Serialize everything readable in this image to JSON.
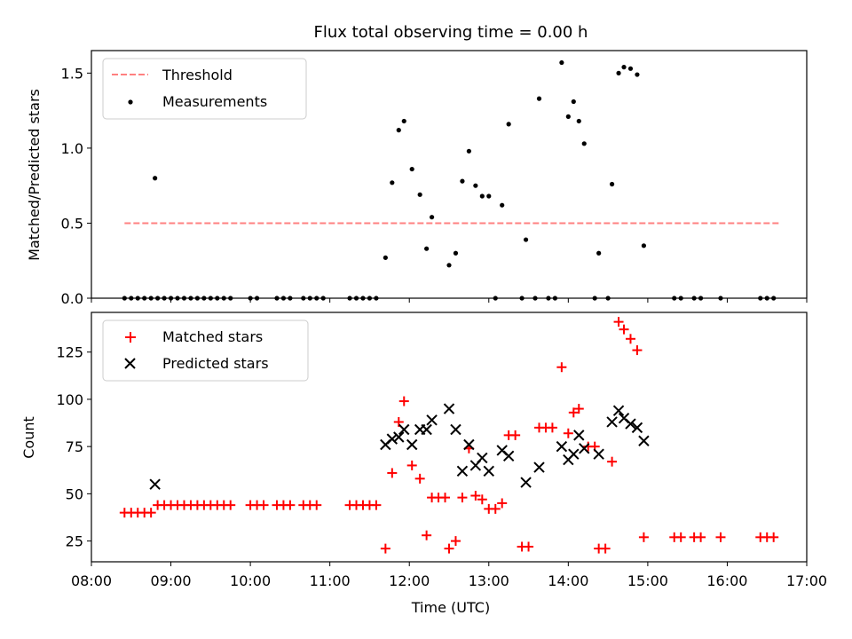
{
  "figure": {
    "title": "Flux total observing time = 0.00 h"
  },
  "colors": {
    "threshold": "#ff8080",
    "measurement": "#000000",
    "matched": "#ff0000",
    "predicted": "#000000"
  },
  "chart_data": [
    {
      "type": "scatter",
      "title": "Flux total observing time = 0.00 h",
      "xlabel": "",
      "ylabel": "Matched/Predicted stars",
      "xlim": [
        "08:00",
        "17:00"
      ],
      "ylim": [
        0,
        1.65
      ],
      "yticks": [
        0.0,
        0.5,
        1.0,
        1.5
      ],
      "ytick_labels": [
        "0.0",
        "0.5",
        "1.0",
        "1.5"
      ],
      "legend": {
        "placement": "top-left",
        "entries": [
          {
            "label": "Threshold",
            "kind": "dashed-line",
            "color": "#ff8080"
          },
          {
            "label": "Measurements",
            "kind": "dot",
            "color": "#000000"
          }
        ]
      },
      "threshold": {
        "name": "Threshold",
        "y": 0.5,
        "x_start": "08:25",
        "x_end": "16:40"
      },
      "series": [
        {
          "name": "Measurements",
          "points": [
            [
              "08:25",
              0
            ],
            [
              "08:30",
              0
            ],
            [
              "08:35",
              0
            ],
            [
              "08:40",
              0
            ],
            [
              "08:45",
              0
            ],
            [
              "08:48",
              0.8
            ],
            [
              "08:50",
              0
            ],
            [
              "08:55",
              0
            ],
            [
              "09:00",
              0
            ],
            [
              "09:05",
              0
            ],
            [
              "09:10",
              0
            ],
            [
              "09:15",
              0
            ],
            [
              "09:20",
              0
            ],
            [
              "09:25",
              0
            ],
            [
              "09:30",
              0
            ],
            [
              "09:35",
              0
            ],
            [
              "09:40",
              0
            ],
            [
              "09:45",
              0
            ],
            [
              "10:00",
              0
            ],
            [
              "10:05",
              0
            ],
            [
              "10:20",
              0
            ],
            [
              "10:25",
              0
            ],
            [
              "10:30",
              0
            ],
            [
              "10:40",
              0
            ],
            [
              "10:45",
              0
            ],
            [
              "10:50",
              0
            ],
            [
              "10:55",
              0
            ],
            [
              "11:15",
              0
            ],
            [
              "11:20",
              0
            ],
            [
              "11:25",
              0
            ],
            [
              "11:30",
              0
            ],
            [
              "11:35",
              0
            ],
            [
              "11:42",
              0.27
            ],
            [
              "11:47",
              0.77
            ],
            [
              "11:52",
              1.12
            ],
            [
              "11:56",
              1.18
            ],
            [
              "12:02",
              0.86
            ],
            [
              "12:08",
              0.69
            ],
            [
              "12:13",
              0.33
            ],
            [
              "12:17",
              0.54
            ],
            [
              "12:30",
              0.22
            ],
            [
              "12:35",
              0.3
            ],
            [
              "12:40",
              0.78
            ],
            [
              "12:45",
              0.98
            ],
            [
              "12:50",
              0.75
            ],
            [
              "12:55",
              0.68
            ],
            [
              "13:00",
              0.68
            ],
            [
              "13:05",
              0
            ],
            [
              "13:10",
              0.62
            ],
            [
              "13:15",
              1.16
            ],
            [
              "13:25",
              0
            ],
            [
              "13:28",
              0.39
            ],
            [
              "13:35",
              0
            ],
            [
              "13:38",
              1.33
            ],
            [
              "13:45",
              0
            ],
            [
              "13:50",
              0
            ],
            [
              "13:55",
              1.57
            ],
            [
              "14:00",
              1.21
            ],
            [
              "14:04",
              1.31
            ],
            [
              "14:08",
              1.18
            ],
            [
              "14:12",
              1.03
            ],
            [
              "14:20",
              0
            ],
            [
              "14:23",
              0.3
            ],
            [
              "14:30",
              0
            ],
            [
              "14:33",
              0.76
            ],
            [
              "14:38",
              1.5
            ],
            [
              "14:42",
              1.54
            ],
            [
              "14:47",
              1.53
            ],
            [
              "14:52",
              1.49
            ],
            [
              "14:57",
              0.35
            ],
            [
              "15:20",
              0
            ],
            [
              "15:25",
              0
            ],
            [
              "15:35",
              0
            ],
            [
              "15:40",
              0
            ],
            [
              "15:55",
              0
            ],
            [
              "16:25",
              0
            ],
            [
              "16:30",
              0
            ],
            [
              "16:35",
              0
            ]
          ]
        }
      ]
    },
    {
      "type": "scatter",
      "title": "",
      "xlabel": "Time (UTC)",
      "ylabel": "Count",
      "xlim": [
        "08:00",
        "17:00"
      ],
      "ylim": [
        14,
        146
      ],
      "yticks": [
        25,
        50,
        75,
        100,
        125
      ],
      "ytick_labels": [
        "25",
        "50",
        "75",
        "100",
        "125"
      ],
      "xticks": [
        "08:00",
        "09:00",
        "10:00",
        "11:00",
        "12:00",
        "13:00",
        "14:00",
        "15:00",
        "16:00",
        "17:00"
      ],
      "xtick_labels": [
        "08:00",
        "09:00",
        "10:00",
        "11:00",
        "12:00",
        "13:00",
        "14:00",
        "15:00",
        "16:00",
        "17:00"
      ],
      "legend": {
        "placement": "top-left",
        "entries": [
          {
            "label": "Matched stars",
            "kind": "plus",
            "color": "#ff0000"
          },
          {
            "label": "Predicted stars",
            "kind": "x",
            "color": "#000000"
          }
        ]
      },
      "series": [
        {
          "name": "Matched stars",
          "marker": "plus",
          "points": [
            [
              "08:25",
              40
            ],
            [
              "08:30",
              40
            ],
            [
              "08:35",
              40
            ],
            [
              "08:40",
              40
            ],
            [
              "08:45",
              40
            ],
            [
              "08:50",
              44
            ],
            [
              "08:55",
              44
            ],
            [
              "09:00",
              44
            ],
            [
              "09:05",
              44
            ],
            [
              "09:10",
              44
            ],
            [
              "09:15",
              44
            ],
            [
              "09:20",
              44
            ],
            [
              "09:25",
              44
            ],
            [
              "09:30",
              44
            ],
            [
              "09:35",
              44
            ],
            [
              "09:40",
              44
            ],
            [
              "09:45",
              44
            ],
            [
              "10:00",
              44
            ],
            [
              "10:05",
              44
            ],
            [
              "10:10",
              44
            ],
            [
              "10:20",
              44
            ],
            [
              "10:25",
              44
            ],
            [
              "10:30",
              44
            ],
            [
              "10:40",
              44
            ],
            [
              "10:45",
              44
            ],
            [
              "10:50",
              44
            ],
            [
              "11:15",
              44
            ],
            [
              "11:20",
              44
            ],
            [
              "11:25",
              44
            ],
            [
              "11:30",
              44
            ],
            [
              "11:35",
              44
            ],
            [
              "11:42",
              21
            ],
            [
              "11:47",
              61
            ],
            [
              "11:52",
              88
            ],
            [
              "11:56",
              99
            ],
            [
              "12:02",
              65
            ],
            [
              "12:08",
              58
            ],
            [
              "12:13",
              28
            ],
            [
              "12:17",
              48
            ],
            [
              "12:22",
              48
            ],
            [
              "12:27",
              48
            ],
            [
              "12:30",
              21
            ],
            [
              "12:35",
              25
            ],
            [
              "12:40",
              48
            ],
            [
              "12:45",
              74
            ],
            [
              "12:50",
              49
            ],
            [
              "12:55",
              47
            ],
            [
              "13:00",
              42
            ],
            [
              "13:05",
              42
            ],
            [
              "13:10",
              45
            ],
            [
              "13:15",
              81
            ],
            [
              "13:20",
              81
            ],
            [
              "13:25",
              22
            ],
            [
              "13:30",
              22
            ],
            [
              "13:38",
              85
            ],
            [
              "13:43",
              85
            ],
            [
              "13:48",
              85
            ],
            [
              "13:55",
              117
            ],
            [
              "14:00",
              82
            ],
            [
              "14:04",
              93
            ],
            [
              "14:08",
              95
            ],
            [
              "14:15",
              75
            ],
            [
              "14:20",
              75
            ],
            [
              "14:23",
              21
            ],
            [
              "14:28",
              21
            ],
            [
              "14:33",
              67
            ],
            [
              "14:38",
              141
            ],
            [
              "14:42",
              137
            ],
            [
              "14:47",
              132
            ],
            [
              "14:52",
              126
            ],
            [
              "14:57",
              27
            ],
            [
              "15:20",
              27
            ],
            [
              "15:25",
              27
            ],
            [
              "15:35",
              27
            ],
            [
              "15:40",
              27
            ],
            [
              "15:55",
              27
            ],
            [
              "16:25",
              27
            ],
            [
              "16:30",
              27
            ],
            [
              "16:35",
              27
            ]
          ]
        },
        {
          "name": "Predicted stars",
          "marker": "x",
          "points": [
            [
              "08:48",
              55
            ],
            [
              "11:42",
              76
            ],
            [
              "11:47",
              79
            ],
            [
              "11:52",
              80
            ],
            [
              "11:56",
              84
            ],
            [
              "12:02",
              76
            ],
            [
              "12:08",
              84
            ],
            [
              "12:13",
              84
            ],
            [
              "12:17",
              89
            ],
            [
              "12:30",
              95
            ],
            [
              "12:35",
              84
            ],
            [
              "12:40",
              62
            ],
            [
              "12:45",
              76
            ],
            [
              "12:50",
              65
            ],
            [
              "12:55",
              69
            ],
            [
              "13:00",
              62
            ],
            [
              "13:10",
              73
            ],
            [
              "13:15",
              70
            ],
            [
              "13:28",
              56
            ],
            [
              "13:38",
              64
            ],
            [
              "13:55",
              75
            ],
            [
              "14:00",
              68
            ],
            [
              "14:04",
              71
            ],
            [
              "14:08",
              81
            ],
            [
              "14:12",
              74
            ],
            [
              "14:23",
              71
            ],
            [
              "14:33",
              88
            ],
            [
              "14:38",
              94
            ],
            [
              "14:42",
              90
            ],
            [
              "14:47",
              87
            ],
            [
              "14:52",
              85
            ],
            [
              "14:57",
              78
            ]
          ]
        }
      ]
    }
  ]
}
